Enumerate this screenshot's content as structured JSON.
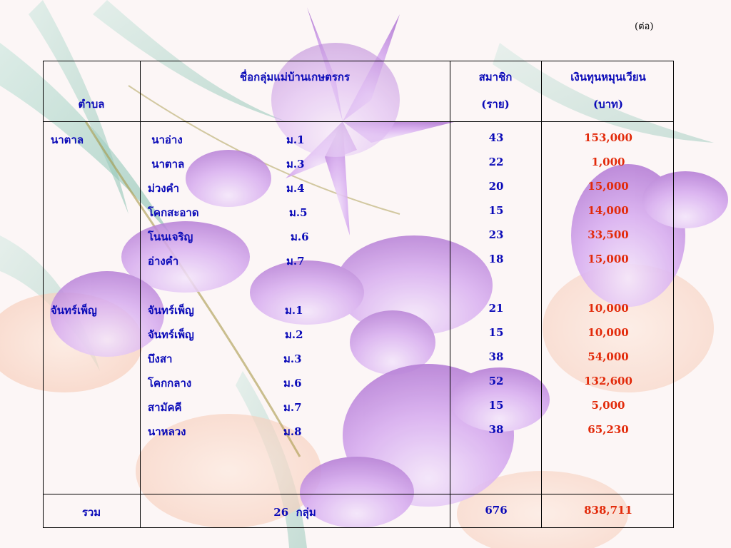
{
  "continued_label": "(ต่อ)",
  "header": {
    "tambon": "ตำบล",
    "group_name": "ชื่อกลุ่มแม่บ้านเกษตรกร",
    "members_line1": "สมาชิก",
    "members_line2": "(ราย)",
    "fund_line1": "เงินทุนหมุนเวียน",
    "fund_line2": "(บาท)"
  },
  "sections": [
    {
      "tambon": "นาตาล",
      "rows": [
        {
          "name": " นาอ่าง",
          "moo": "ม.1",
          "members": "43",
          "fund": "153,000"
        },
        {
          "name": " นาตาล",
          "moo": "ม.3",
          "members": "22",
          "fund": "1,000"
        },
        {
          "name": "ม่วงคำ",
          "moo": "ม.4",
          "members": "20",
          "fund": "15,000"
        },
        {
          "name": "โคกสะอาด",
          "moo": "ม.5",
          "members": "15",
          "fund": "14,000"
        },
        {
          "name": "โนนเจริญ",
          "moo": "ม.6",
          "members": "23",
          "fund": "33,500"
        },
        {
          "name": "อ่างคำ",
          "moo": "ม.7",
          "members": "18",
          "fund": "15,000"
        }
      ]
    },
    {
      "tambon": "จันทร์เพ็ญ",
      "rows": [
        {
          "name": "จันทร์เพ็ญ",
          "moo": "ม.1",
          "members": "21",
          "fund": "10,000"
        },
        {
          "name": "จันทร์เพ็ญ",
          "moo": "ม.2",
          "members": "15",
          "fund": "10,000"
        },
        {
          "name": "บึงสา",
          "moo": "ม.3",
          "members": "38",
          "fund": "54,000"
        },
        {
          "name": "โคกกลาง",
          "moo": "ม.6",
          "members": "52",
          "fund": "132,600"
        },
        {
          "name": "สามัคคี",
          "moo": "ม.7",
          "members": "15",
          "fund": "5,000"
        },
        {
          "name": "นาหลวง",
          "moo": "ม.8",
          "members": "38",
          "fund": "65,230"
        }
      ]
    }
  ],
  "total": {
    "label": "รวม",
    "groups": "26  กลุ่ม",
    "members": "676",
    "fund": "838,711"
  },
  "colors": {
    "text_blue": "#0a0ab8",
    "fund_red": "#e22a0a",
    "flower_purple": "#c99be0"
  }
}
